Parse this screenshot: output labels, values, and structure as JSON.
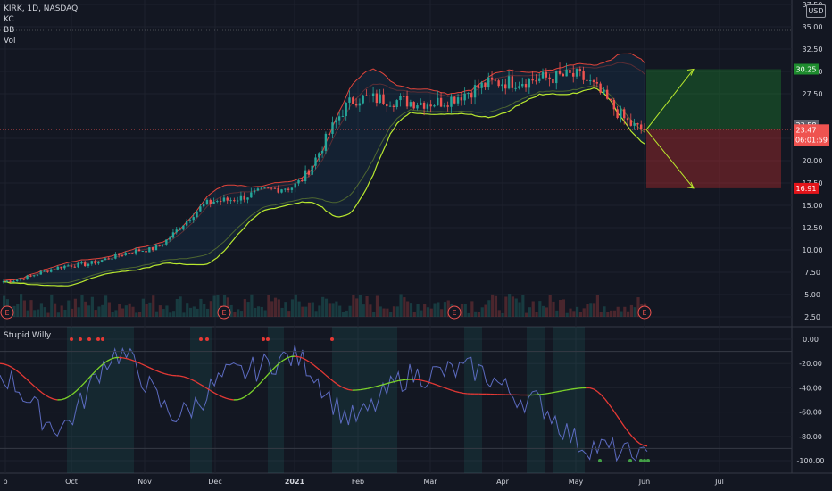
{
  "symbol_line": "KIRK, 1D, NASDAQ",
  "indicators": [
    "KC",
    "BB",
    "Vol"
  ],
  "currency": "USD",
  "oscillator_name": "Stupid Willy",
  "earnings_marker": "E",
  "colors": {
    "background": "#131722",
    "up": "#26a69a",
    "down": "#ef5350",
    "bb_line": "#b9e82e",
    "kc_line": "#e0443a",
    "take_profit": "#1e8c2e",
    "stop_loss": "#d32f2f",
    "osc_fast": "#5c6bc0",
    "osc_slow_up": "#7cd32a",
    "osc_slow_down": "#d32f2f"
  },
  "chart_data": [
    {
      "type": "candlestick",
      "title": "KIRK, 1D, NASDAQ",
      "x_ticks": [
        "p",
        "Oct",
        "Nov",
        "Dec",
        "2021",
        "Feb",
        "Mar",
        "Apr",
        "May",
        "Jun",
        "Jul"
      ],
      "y_ticks": [
        "2.50",
        "5.00",
        "7.50",
        "10.00",
        "12.50",
        "15.00",
        "17.50",
        "20.00",
        "22.50",
        "27.50",
        "30.00",
        "32.50",
        "35.00",
        "37.50"
      ],
      "ylim": [
        2.5,
        37.5
      ],
      "price_labels": {
        "take_profit": "30.25",
        "last_close": "23.58",
        "current": "23.47",
        "countdown": "06:01:59",
        "stop_loss": "16.91"
      },
      "series": [
        {
          "name": "close",
          "months": [
            "Sep",
            "Oct",
            "Nov",
            "Dec",
            "Jan",
            "Feb",
            "Mar",
            "Apr",
            "May",
            "Jun"
          ],
          "values": [
            6.5,
            8.3,
            10.0,
            15.5,
            17.0,
            27.0,
            26.5,
            28.8,
            29.5,
            23.5
          ]
        }
      ],
      "position": {
        "entry": 23.47,
        "target": 30.25,
        "stop": 16.91
      },
      "earnings_dates": [
        "Sep",
        "Dec",
        "Mar",
        "Jun"
      ]
    },
    {
      "type": "line",
      "title": "Stupid Willy",
      "y_ticks": [
        "0.00",
        "-20.00",
        "-40.00",
        "-60.00",
        "-80.00",
        "-100.00"
      ],
      "ylim": [
        -105,
        5
      ],
      "series": [
        {
          "name": "fast",
          "values": [
            -30,
            -72,
            -12,
            -62,
            -28,
            -15,
            -65,
            -30,
            -25,
            -50,
            -88,
            -98
          ]
        },
        {
          "name": "slow",
          "values": [
            -20,
            -50,
            -15,
            -30,
            -50,
            -14,
            -42,
            -33,
            -45,
            -46,
            -40,
            -88
          ]
        }
      ]
    }
  ]
}
